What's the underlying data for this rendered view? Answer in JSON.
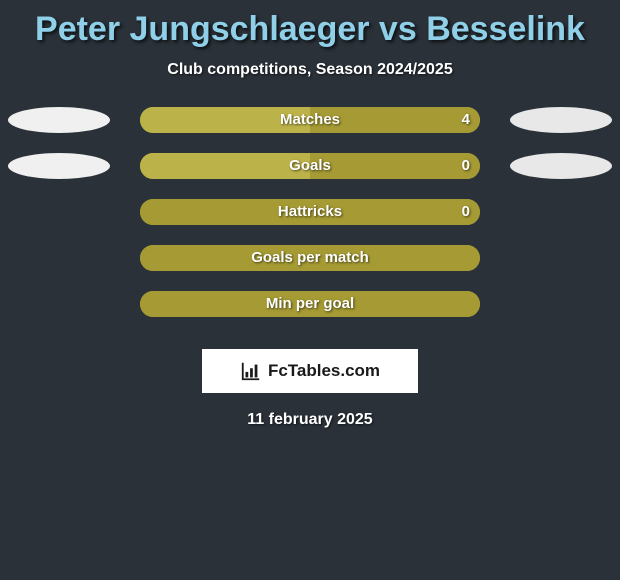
{
  "title": "Peter Jungschlaeger vs Besselink",
  "subtitle": "Club competitions, Season 2024/2025",
  "date": "11 february 2025",
  "brand": "FcTables.com",
  "colors": {
    "background": "#2a3138",
    "title": "#8fcfe8",
    "text": "#ffffff",
    "playerA_bar": "#bcb24a",
    "playerB_bar": "#a59a34",
    "single_bar": "#a59a34",
    "ellipseA": "#f0f0f0",
    "ellipseB": "#e8e8e8",
    "brand_bg": "#ffffff",
    "brand_text": "#1a1a1a"
  },
  "rows": [
    {
      "label": "Matches",
      "valueA": "",
      "valueB": "4",
      "fillA_pct": 50,
      "fillB_pct": 50,
      "showEllipseA": true,
      "showEllipseB": true
    },
    {
      "label": "Goals",
      "valueA": "",
      "valueB": "0",
      "fillA_pct": 50,
      "fillB_pct": 50,
      "showEllipseA": true,
      "showEllipseB": true
    },
    {
      "label": "Hattricks",
      "valueA": "",
      "valueB": "0",
      "fillA_pct": 0,
      "fillB_pct": 100,
      "showEllipseA": false,
      "showEllipseB": false
    },
    {
      "label": "Goals per match",
      "valueA": "",
      "valueB": "",
      "fillA_pct": 0,
      "fillB_pct": 100,
      "showEllipseA": false,
      "showEllipseB": false
    },
    {
      "label": "Min per goal",
      "valueA": "",
      "valueB": "",
      "fillA_pct": 0,
      "fillB_pct": 100,
      "showEllipseA": false,
      "showEllipseB": false
    }
  ]
}
